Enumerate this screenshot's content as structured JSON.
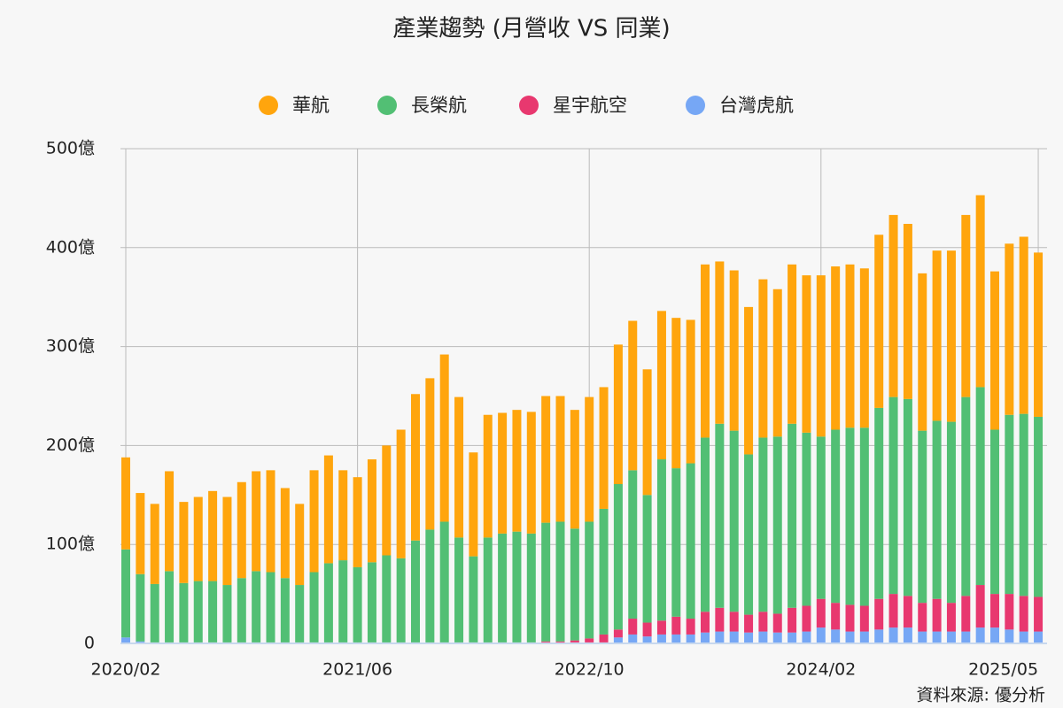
{
  "chart_data": {
    "type": "stacked_bar",
    "title": "產業趨勢 (月營收 VS 同業)",
    "source": "資料來源: 優分析",
    "categories": [
      "2020/02",
      null,
      null,
      null,
      null,
      null,
      null,
      null,
      null,
      null,
      null,
      null,
      null,
      null,
      null,
      null,
      "2021/06",
      null,
      null,
      null,
      null,
      null,
      null,
      null,
      null,
      null,
      null,
      null,
      null,
      null,
      null,
      null,
      "2022/10",
      null,
      null,
      null,
      null,
      null,
      null,
      null,
      null,
      null,
      null,
      null,
      null,
      null,
      null,
      null,
      "2024/02",
      null,
      null,
      null,
      null,
      null,
      null,
      null,
      null,
      null,
      null,
      null,
      null,
      null,
      null,
      "2025/05"
    ],
    "series": [
      {
        "name": "台灣虎航",
        "color": "#76a7f5",
        "values": [
          6,
          2,
          1,
          1,
          1,
          1,
          1,
          1,
          1,
          1,
          1,
          1,
          1,
          1,
          1,
          1,
          1,
          1,
          1,
          1,
          1,
          1,
          1,
          1,
          1,
          1,
          1,
          1,
          1,
          1,
          1,
          1,
          1,
          1,
          6,
          9,
          7,
          9,
          9,
          9,
          11,
          12,
          12,
          11,
          12,
          11,
          11,
          12,
          16,
          14,
          12,
          12,
          14,
          16,
          16,
          12,
          12,
          12,
          12,
          16,
          16,
          14,
          12,
          12
        ]
      },
      {
        "name": "星宇航空",
        "color": "#e8386f",
        "values": [
          0,
          0,
          0,
          0,
          0,
          0,
          0,
          0,
          0,
          0,
          0,
          0,
          0,
          0,
          0,
          0,
          0,
          0,
          0,
          0,
          0,
          0,
          0,
          0,
          0,
          0,
          0,
          0,
          0,
          1,
          1,
          2,
          4,
          8,
          8,
          16,
          14,
          14,
          18,
          16,
          21,
          24,
          20,
          18,
          20,
          19,
          25,
          26,
          29,
          27,
          27,
          26,
          31,
          34,
          32,
          29,
          33,
          29,
          36,
          43,
          34,
          36,
          36,
          35
        ]
      },
      {
        "name": "長榮航",
        "color": "#52bf74",
        "values": [
          89,
          68,
          59,
          72,
          60,
          62,
          62,
          58,
          65,
          72,
          71,
          65,
          58,
          71,
          80,
          83,
          76,
          81,
          88,
          85,
          103,
          114,
          122,
          106,
          87,
          106,
          110,
          112,
          110,
          120,
          121,
          113,
          118,
          127,
          147,
          150,
          129,
          163,
          150,
          157,
          176,
          186,
          183,
          162,
          176,
          179,
          186,
          175,
          164,
          175,
          179,
          180,
          193,
          199,
          199,
          174,
          180,
          183,
          201,
          200,
          166,
          181,
          184,
          182
        ]
      },
      {
        "name": "華航",
        "color": "#ffa50d",
        "values": [
          93,
          82,
          81,
          101,
          82,
          85,
          91,
          89,
          97,
          101,
          103,
          91,
          82,
          103,
          109,
          91,
          91,
          104,
          111,
          130,
          148,
          153,
          169,
          142,
          105,
          124,
          122,
          123,
          123,
          128,
          127,
          120,
          126,
          123,
          141,
          151,
          127,
          150,
          152,
          145,
          175,
          164,
          162,
          149,
          160,
          149,
          161,
          159,
          163,
          165,
          165,
          161,
          175,
          184,
          177,
          159,
          172,
          173,
          184,
          194,
          160,
          173,
          179,
          166
        ]
      }
    ],
    "ylim": [
      0,
      500
    ],
    "yticks": [
      0,
      {
        "value": 100,
        "label": "100億"
      },
      {
        "value": 200,
        "label": "200億"
      },
      {
        "value": 300,
        "label": "300億"
      },
      {
        "value": 400,
        "label": "400億"
      },
      {
        "value": 500,
        "label": "500億"
      }
    ],
    "grid": true,
    "legend": "top"
  }
}
